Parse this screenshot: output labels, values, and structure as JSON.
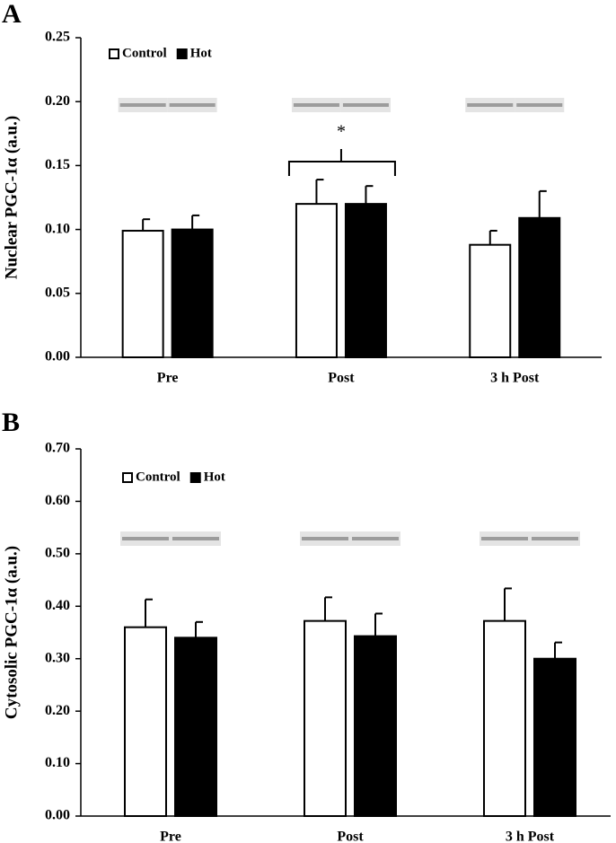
{
  "chart_data": [
    {
      "type": "bar",
      "panel_label": "A",
      "ylabel": "Nuclear PGC-1α (a.u.)",
      "categories": [
        "Pre",
        "Post",
        "3 h Post"
      ],
      "series": [
        {
          "name": "Control",
          "color": "#ffffff",
          "values": [
            0.099,
            0.12,
            0.088
          ],
          "errors": [
            0.009,
            0.019,
            0.011
          ]
        },
        {
          "name": "Hot",
          "color": "#000000",
          "values": [
            0.1,
            0.12,
            0.109
          ],
          "errors": [
            0.011,
            0.014,
            0.021
          ]
        }
      ],
      "ylim": [
        0,
        0.25
      ],
      "yticks": [
        {
          "value": 0,
          "label": "0.00"
        },
        0.05,
        {
          "value": 0.1,
          "label": "0.10"
        },
        0.15,
        {
          "value": 0.2,
          "label": "0.20"
        },
        0.25
      ],
      "annotation": "*",
      "grid": false
    },
    {
      "type": "bar",
      "panel_label": "B",
      "ylabel": "Cytosolic PGC-1α (a.u.)",
      "categories": [
        "Pre",
        "Post",
        "3 h Post"
      ],
      "series": [
        {
          "name": "Control",
          "color": "#ffffff",
          "values": [
            0.36,
            0.372,
            0.372
          ],
          "errors": [
            0.053,
            0.045,
            0.062
          ]
        },
        {
          "name": "Hot",
          "color": "#000000",
          "values": [
            0.34,
            0.343,
            0.3
          ],
          "errors": [
            0.03,
            0.043,
            0.031
          ]
        }
      ],
      "ylim": [
        0,
        0.7
      ],
      "yticks": [
        {
          "value": 0,
          "label": "0.00"
        },
        {
          "value": 0.1,
          "label": "0.10"
        },
        {
          "value": 0.2,
          "label": "0.20"
        },
        {
          "value": 0.3,
          "label": "0.30"
        },
        {
          "value": 0.4,
          "label": "0.40"
        },
        {
          "value": 0.5,
          "label": "0.50"
        },
        {
          "value": 0.6,
          "label": "0.60"
        },
        {
          "value": 0.7,
          "label": "0.70"
        }
      ],
      "grid": false
    }
  ]
}
